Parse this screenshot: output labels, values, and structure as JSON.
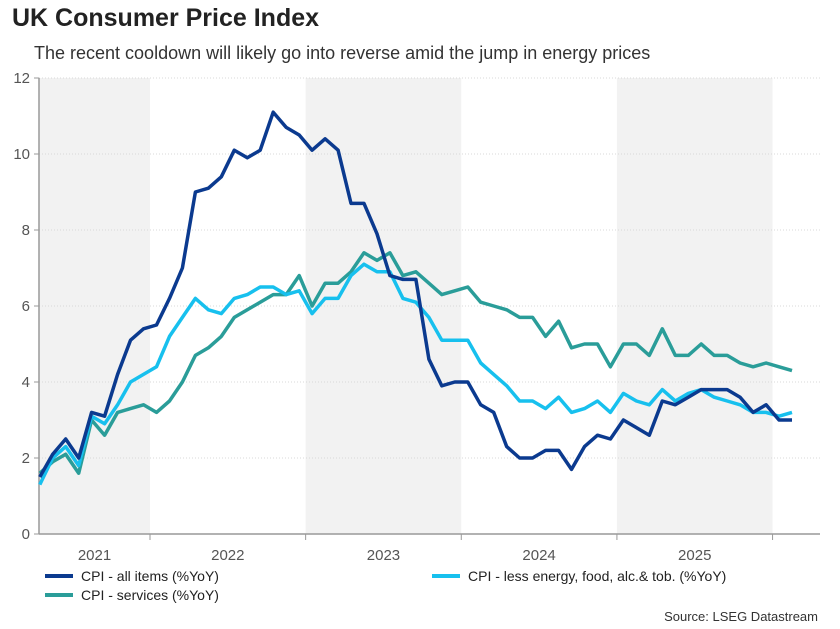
{
  "title": "UK Consumer Price Index",
  "subtitle": "The recent cooldown will likely go into reverse amid the jump in energy prices",
  "source": "Source: LSEG Datastream",
  "chart_data": {
    "type": "line",
    "title": "UK Consumer Price Index",
    "xlabel": "",
    "ylabel": "",
    "ylim": [
      0,
      12
    ],
    "yticks": [
      "0",
      "2",
      "4",
      "6",
      "8",
      "10",
      "12"
    ],
    "xtick_labels": [
      "2021",
      "2022",
      "2023",
      "2024",
      "2025"
    ],
    "shaded_years": [
      "2021",
      "2023",
      "2025"
    ],
    "grid": "horizontal dotted",
    "legend": "bottom",
    "x": [
      "2021-04",
      "2021-05",
      "2021-06",
      "2021-07",
      "2021-08",
      "2021-09",
      "2021-10",
      "2021-11",
      "2021-12",
      "2022-01",
      "2022-02",
      "2022-03",
      "2022-04",
      "2022-05",
      "2022-06",
      "2022-07",
      "2022-08",
      "2022-09",
      "2022-10",
      "2022-11",
      "2022-12",
      "2023-01",
      "2023-02",
      "2023-03",
      "2023-04",
      "2023-05",
      "2023-06",
      "2023-07",
      "2023-08",
      "2023-09",
      "2023-10",
      "2023-11",
      "2023-12",
      "2024-01",
      "2024-02",
      "2024-03",
      "2024-04",
      "2024-05",
      "2024-06",
      "2024-07",
      "2024-08",
      "2024-09",
      "2024-10",
      "2024-11",
      "2024-12",
      "2025-01",
      "2025-02",
      "2025-03",
      "2025-04",
      "2025-05",
      "2025-06",
      "2025-07",
      "2025-08",
      "2025-09",
      "2025-10",
      "2025-11",
      "2025-12",
      "2026-01",
      "2026-02"
    ],
    "series": [
      {
        "name": "CPI - all items (%YoY)",
        "color": "#0b3a8f",
        "values": [
          1.5,
          2.1,
          2.5,
          2.0,
          3.2,
          3.1,
          4.2,
          5.1,
          5.4,
          5.5,
          6.2,
          7.0,
          9.0,
          9.1,
          9.4,
          10.1,
          9.9,
          10.1,
          11.1,
          10.7,
          10.5,
          10.1,
          10.4,
          10.1,
          8.7,
          8.7,
          7.9,
          6.8,
          6.7,
          6.7,
          4.6,
          3.9,
          4.0,
          4.0,
          3.4,
          3.2,
          2.3,
          2.0,
          2.0,
          2.2,
          2.2,
          1.7,
          2.3,
          2.6,
          2.5,
          3.0,
          2.8,
          2.6,
          3.5,
          3.4,
          3.6,
          3.8,
          3.8,
          3.8,
          3.6,
          3.2,
          3.4,
          3.0,
          3.0
        ]
      },
      {
        "name": "CPI - less energy, food, alc.& tob. (%YoY)",
        "color": "#17c0ee",
        "values": [
          1.3,
          2.0,
          2.3,
          1.8,
          3.1,
          2.9,
          3.4,
          4.0,
          4.2,
          4.4,
          5.2,
          5.7,
          6.2,
          5.9,
          5.8,
          6.2,
          6.3,
          6.5,
          6.5,
          6.3,
          6.4,
          5.8,
          6.2,
          6.2,
          6.8,
          7.1,
          6.9,
          6.9,
          6.2,
          6.1,
          5.7,
          5.1,
          5.1,
          5.1,
          4.5,
          4.2,
          3.9,
          3.5,
          3.5,
          3.3,
          3.6,
          3.2,
          3.3,
          3.5,
          3.2,
          3.7,
          3.5,
          3.4,
          3.8,
          3.5,
          3.7,
          3.8,
          3.6,
          3.5,
          3.4,
          3.2,
          3.2,
          3.1,
          3.2
        ]
      },
      {
        "name": "CPI - services (%YoY)",
        "color": "#2a9d99",
        "values": [
          1.6,
          1.9,
          2.1,
          1.6,
          3.0,
          2.6,
          3.2,
          3.3,
          3.4,
          3.2,
          3.5,
          4.0,
          4.7,
          4.9,
          5.2,
          5.7,
          5.9,
          6.1,
          6.3,
          6.3,
          6.8,
          6.0,
          6.6,
          6.6,
          6.9,
          7.4,
          7.2,
          7.4,
          6.8,
          6.9,
          6.6,
          6.3,
          6.4,
          6.5,
          6.1,
          6.0,
          5.9,
          5.7,
          5.7,
          5.2,
          5.6,
          4.9,
          5.0,
          5.0,
          4.4,
          5.0,
          5.0,
          4.7,
          5.4,
          4.7,
          4.7,
          5.0,
          4.7,
          4.7,
          4.5,
          4.4,
          4.5,
          4.4,
          4.3
        ]
      }
    ]
  }
}
